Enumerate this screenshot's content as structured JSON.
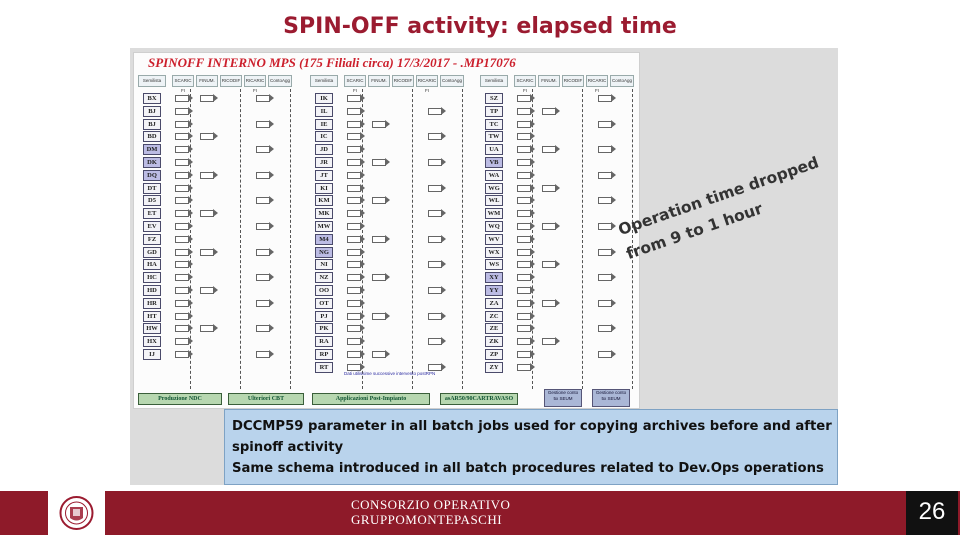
{
  "slide": {
    "title": "SPIN-OFF activity: elapsed time",
    "page_number": "26"
  },
  "diagram": {
    "title": "SPINOFF INTERNO  MPS  (175 Filiali circa)  17/3/2017  -  .MP17076",
    "column_headers": [
      "Semilista",
      "SCARIC FI",
      "FINUM.",
      "RICODIF",
      "RICARIC FI",
      "ContoAgg"
    ],
    "col1_codes": [
      "BX",
      "BJ",
      "BJ",
      "BD",
      "DM",
      "DK",
      "DQ",
      "DT",
      "D5",
      "ET",
      "EV",
      "FZ",
      "GD",
      "HA",
      "HC",
      "HD",
      "HR",
      "HT",
      "HW",
      "HX",
      "IJ"
    ],
    "col2_codes": [
      "IK",
      "IL",
      "IE",
      "IC",
      "JD",
      "JR",
      "JT",
      "KI",
      "KM",
      "MK",
      "MW",
      "M4",
      "NG",
      "NI",
      "NZ",
      "OO",
      "OT",
      "PJ",
      "PK",
      "RA",
      "RP",
      "RT"
    ],
    "col3_codes": [
      "SZ",
      "TP",
      "TC",
      "TW",
      "UA",
      "VB",
      "WA",
      "WG",
      "WL",
      "WM",
      "WQ",
      "WV",
      "WX",
      "WS",
      "XY",
      "YY",
      "ZA",
      "ZC",
      "ZE",
      "ZK",
      "ZP",
      "ZY"
    ],
    "col1_highlighted": [
      4,
      5,
      6
    ],
    "col2_highlighted": [
      11,
      12
    ],
    "col3_highlighted": [
      5,
      14,
      15
    ],
    "note": "Dati utilissime successive intervento postRPN",
    "footer_labels": [
      "Produzione NDC",
      "Ulteriori CBT",
      "Applicazioni Post-Impianto",
      "asAR50/90CARTRAVASO"
    ],
    "small_boxes": [
      "Gestione conto 5x SEUM",
      "Gestione conto 5x SEUM"
    ]
  },
  "overlay": {
    "line1": "Operation time dropped",
    "line2": "from 9 to 1 hour"
  },
  "caption": {
    "line1": "DCCMP59 parameter in all batch jobs used for copying archives before and after",
    "line2": "spinoff activity",
    "line3": "Same schema introduced in all batch procedures related to Dev.Ops operations"
  },
  "footer": {
    "brand_line1": "CONSORZIO OPERATIVO",
    "brand_line2": "GRUPPOMONTEPASCHI"
  },
  "colors": {
    "accent": "#9b1b30",
    "footer_bar": "#8e1a29",
    "caption_bg": "#b9d3ec"
  }
}
